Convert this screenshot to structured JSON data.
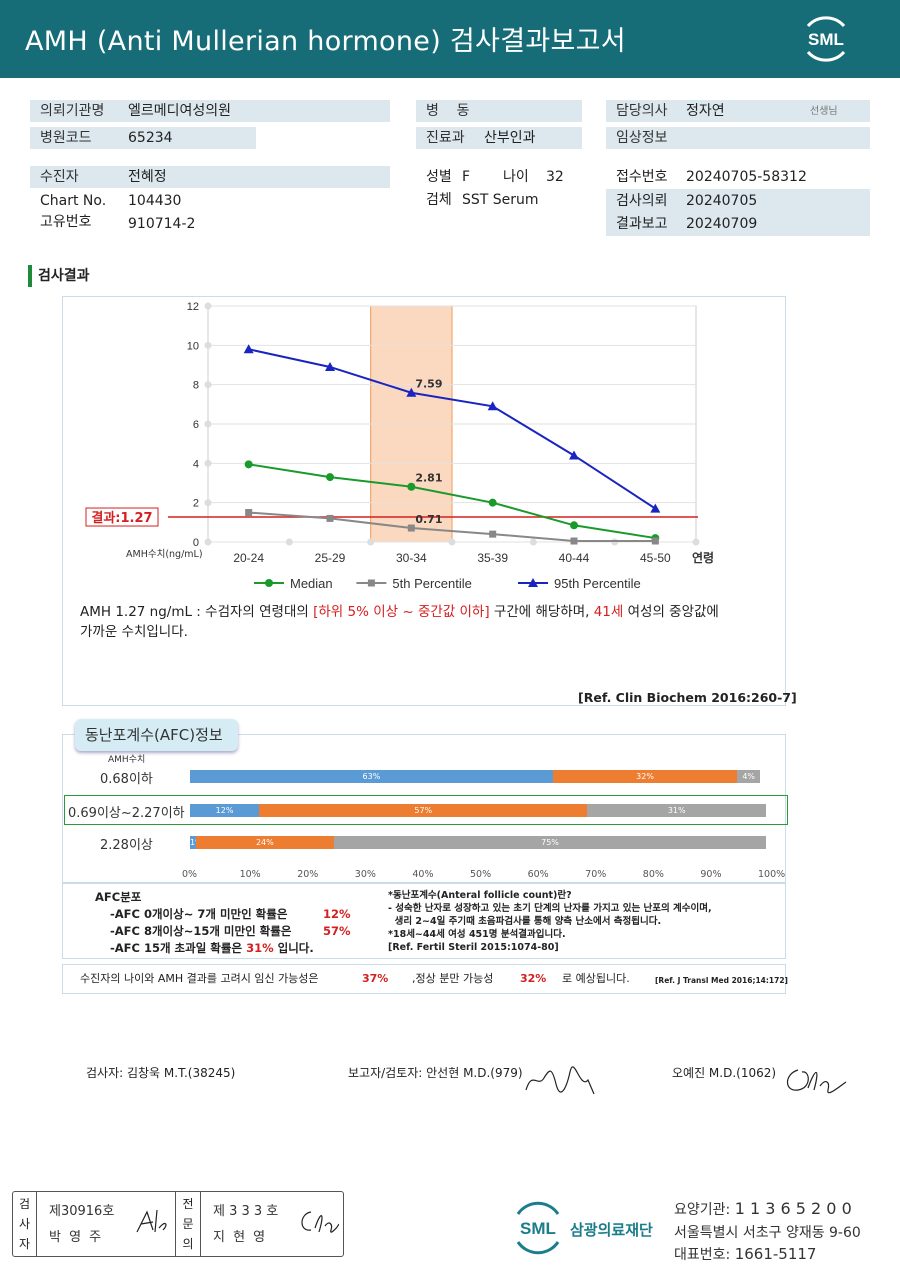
{
  "header": {
    "title": "AMH (Anti Mullerian hormone) 검사결과보고서",
    "logo": "SML"
  },
  "info": {
    "institution_label": "의뢰기관명",
    "institution": "엘르메디여성의원",
    "hospital_code_label": "병원코드",
    "hospital_code": "65234",
    "ward_label": "병    동",
    "ward": "",
    "dept_label": "진료과",
    "dept": "산부인과",
    "doctor_label": "담당의사",
    "doctor": "정자연",
    "doctor_suffix": "선생님",
    "clinical_label": "임상정보",
    "clinical": "",
    "patient_label": "수진자",
    "patient": "전혜정",
    "chart_label": "Chart No.",
    "chart": "104430",
    "id_label": "고유번호",
    "id": "910714-2",
    "sex_label": "성별",
    "sex": "F",
    "age_label": "나이",
    "age": "32",
    "specimen_label": "검체",
    "specimen": "SST Serum",
    "receipt_label": "접수번호",
    "receipt": "20240705-58312",
    "request_label": "검사의뢰",
    "request": "20240705",
    "report_label": "결과보고",
    "report": "20240709"
  },
  "section_title": "검사결과",
  "chart_data": {
    "type": "line",
    "categories": [
      "20-24",
      "25-29",
      "30-34",
      "35-39",
      "40-44",
      "45-50"
    ],
    "x_suffix_label": "연령",
    "y_axis_label": "AMH수치(ng/mL)",
    "ylim": [
      0,
      12
    ],
    "yticks": [
      0,
      2,
      4,
      6,
      8,
      10,
      12
    ],
    "grid": true,
    "highlight_category": "30-34",
    "result_value": 1.27,
    "result_label": "결과:1.27",
    "series": [
      {
        "name": "Median",
        "color": "#1a9a2a",
        "marker": "circle",
        "values": [
          3.95,
          3.3,
          2.81,
          2.0,
          0.85,
          0.2
        ]
      },
      {
        "name": "5th Percentile",
        "color": "#888888",
        "marker": "square",
        "values": [
          1.5,
          1.2,
          0.71,
          0.4,
          0.05,
          0.05
        ]
      },
      {
        "name": "95th Percentile",
        "color": "#1a24c0",
        "marker": "triangle",
        "values": [
          9.8,
          8.9,
          7.59,
          6.9,
          4.4,
          1.7
        ]
      }
    ],
    "data_labels": [
      {
        "series": "95th Percentile",
        "category": "30-34",
        "text": "7.59"
      },
      {
        "series": "Median",
        "category": "30-34",
        "text": "2.81"
      },
      {
        "series": "5th Percentile",
        "category": "30-34",
        "text": "0.71"
      }
    ],
    "legend_position": "bottom"
  },
  "interpretation": {
    "part1": "AMH  1.27 ng/mL : 수검자의 연령대의 ",
    "part2": "[하위 5% 이상 ~ 중간값 이하]",
    "part3": "  구간에 해당하며, ",
    "part4": "41세",
    "part5": " 여성의 중앙값에",
    "line2": "가까운 수치입니다.",
    "ref": "[Ref. Clin Biochem 2016:260-7]"
  },
  "afc": {
    "tab_title": "동난포계수(AFC)정보",
    "amh_label": "AMH수치",
    "axis": [
      "0%",
      "10%",
      "20%",
      "30%",
      "40%",
      "50%",
      "60%",
      "70%",
      "80%",
      "90%",
      "100%"
    ],
    "rows": [
      {
        "label": "0.68이하",
        "segments": [
          {
            "pct": 63,
            "text": "63%",
            "color": "#5b9bd5"
          },
          {
            "pct": 32,
            "text": "32%",
            "color": "#ed7d31"
          },
          {
            "pct": 4,
            "text": "4%",
            "color": "#a5a5a5"
          }
        ]
      },
      {
        "label": "0.69이상~2.27이하",
        "segments": [
          {
            "pct": 12,
            "text": "12%",
            "color": "#5b9bd5"
          },
          {
            "pct": 57,
            "text": "57%",
            "color": "#ed7d31"
          },
          {
            "pct": 31,
            "text": "31%",
            "color": "#a5a5a5"
          }
        ]
      },
      {
        "label": "2.28이상",
        "segments": [
          {
            "pct": 1,
            "text": "1%",
            "color": "#5b9bd5"
          },
          {
            "pct": 24,
            "text": "24%",
            "color": "#ed7d31"
          },
          {
            "pct": 75,
            "text": "75%",
            "color": "#a5a5a5"
          }
        ]
      }
    ],
    "dist_title": "AFC분포",
    "dist1_label": "-AFC  0개이상~ 7개 미만인 확률은",
    "dist1_val": "12%",
    "dist2_label": "-AFC  8개이상~15개 미만인 확률은",
    "dist2_val": "57%",
    "dist3_label": "-AFC  15개 초과일 확률은",
    "dist3_val": "31%",
    "dist3_suffix": "입니다.",
    "def_title": "*동난포계수(Anteral  follicle  count)란?",
    "def1": "- 성숙한 난자로 성장하고 있는 초기 단계의 난자를 가지고 있는 난포의 계수이며,",
    "def2": "  생리 2~4일 주기때 초음파검사를 통해 양측 난소에서 측정됩니다.",
    "def3": "*18세~44세 여성 451명 분석결과입니다.",
    "def_ref": "[Ref. Fertil Steril 2015:1074-80]",
    "summary1": "수진자의 나이와 AMH 결과를 고려시 임신 가능성은",
    "summary_val1": "37%",
    "summary2": ",정상 분만 가능성",
    "summary_val2": "32%",
    "summary3": "로 예상됩니다.",
    "summary_ref": "[Ref. J Transl Med 2016;14:172]"
  },
  "signatures": {
    "tester": "검사자: 김창욱 M.T.(38245)",
    "reporter": "보고자/검토자: 안선현 M.D.(979)",
    "doctor": "오예진 M.D.(1062)"
  },
  "stamp": {
    "left_head": [
      "검",
      "사",
      "자"
    ],
    "left_no": "제30916호",
    "left_name": "박 영 주",
    "right_head": [
      "전",
      "문",
      "의"
    ],
    "right_no": "제 3 3 3 호",
    "right_name": "지 현 영"
  },
  "footer": {
    "org": "삼광의료재단",
    "logo": "SML",
    "code_label": "요양기관:",
    "code": "1 1 3 6 5 2 0 0",
    "address": "서울특별시 서초구 양재동 9-60",
    "phone_label": "대표번호:",
    "phone": "1661-5117"
  }
}
